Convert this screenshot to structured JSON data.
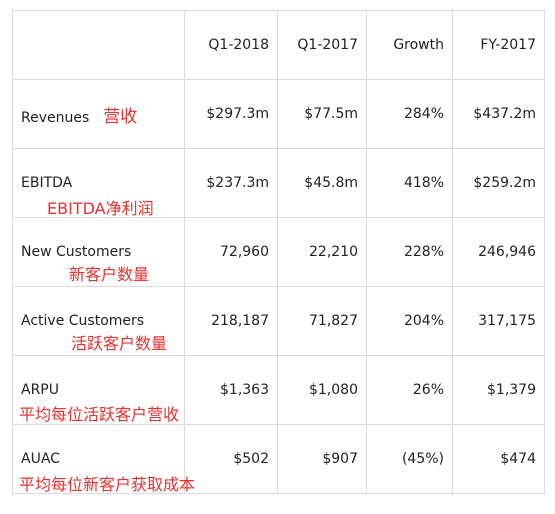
{
  "header": [
    "",
    "Q1-2018",
    "Q1-2017",
    "Growth",
    "FY-2017"
  ],
  "rows": [
    {
      "label": "Revenues",
      "note": "营收",
      "values": [
        "$297.3m",
        "$77.5m",
        "284%",
        "$437.2m"
      ]
    },
    {
      "label": "EBITDA",
      "note": "EBITDA净利润",
      "values": [
        "$237.3m",
        "$45.8m",
        "418%",
        "$259.2m"
      ]
    },
    {
      "label": "New Customers",
      "note": "新客户数量",
      "values": [
        "72,960",
        "22,210",
        "228%",
        "246,946"
      ]
    },
    {
      "label": "Active Customers",
      "note": "活跃客户数量",
      "values": [
        "218,187",
        "71,827",
        "204%",
        "317,175"
      ]
    },
    {
      "label": "ARPU",
      "note": "平均每位活跃客户营收",
      "values": [
        "$1,363",
        "$1,080",
        "26%",
        "$1,379"
      ]
    },
    {
      "label": "AUAC",
      "note": "平均每位新客户获取成本",
      "values": [
        "$502",
        "$907",
        "(45%)",
        "$474"
      ]
    }
  ],
  "colors": {
    "note": "#e8322f",
    "border": "#dcdcdc"
  }
}
